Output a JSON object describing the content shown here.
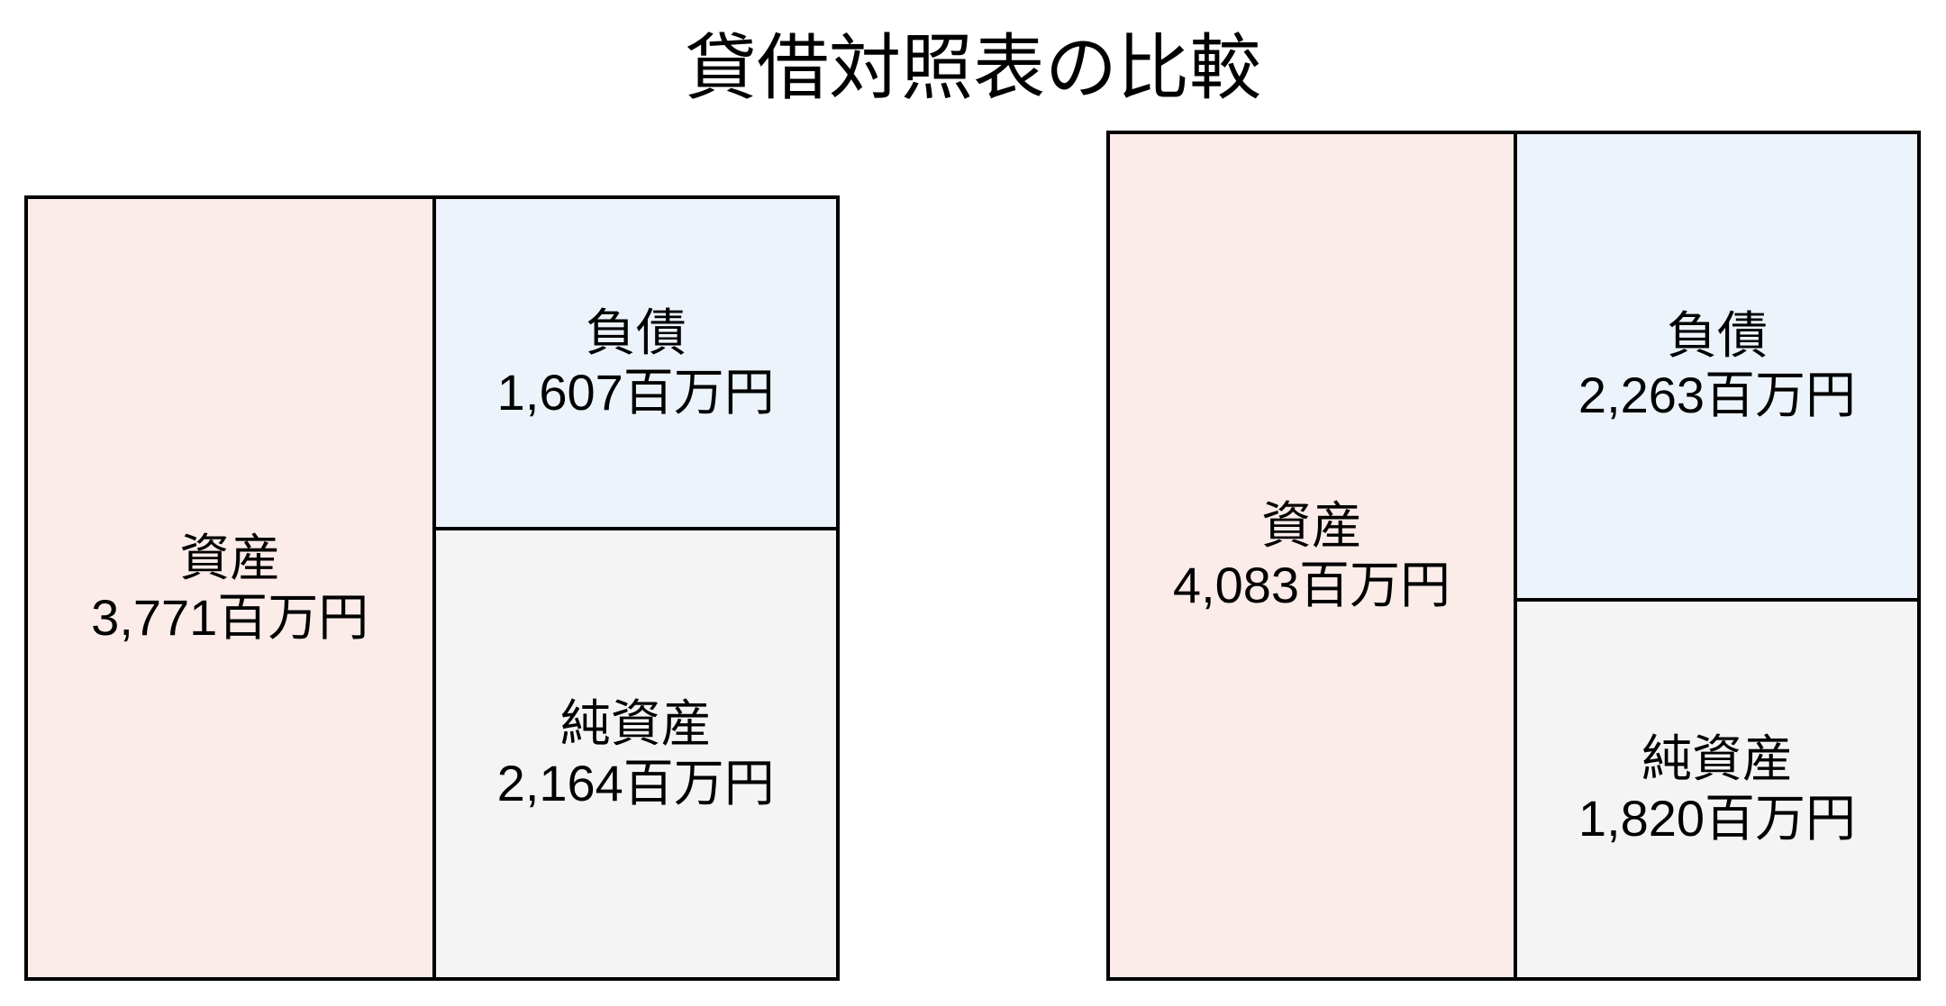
{
  "title": "貸借対照表の比較",
  "chart_data": {
    "type": "bar",
    "subtype": "balance_sheet_box_comparison",
    "title": "貸借対照表の比較",
    "unit": "百万円",
    "grid": false,
    "legend_position": "none",
    "layout_hint": "two square balance-sheet boxes, bottom-aligned, box height proportional to total assets; right column split proportional to liabilities vs net assets",
    "series": [
      {
        "name": "資産",
        "values": [
          3771,
          4083
        ]
      },
      {
        "name": "負債",
        "values": [
          1607,
          2263
        ]
      },
      {
        "name": "純資産",
        "values": [
          2164,
          1820
        ]
      }
    ],
    "sheets": [
      {
        "assets": {
          "label": "資産",
          "value": 3771,
          "display": "3,771百万円"
        },
        "liabilities": {
          "label": "負債",
          "value": 1607,
          "display": "1,607百万円"
        },
        "net_assets": {
          "label": "純資産",
          "value": 2164,
          "display": "2,164百万円"
        }
      },
      {
        "assets": {
          "label": "資産",
          "value": 4083,
          "display": "4,083百万円"
        },
        "liabilities": {
          "label": "負債",
          "value": 2263,
          "display": "2,263百万円"
        },
        "net_assets": {
          "label": "純資産",
          "value": 1820,
          "display": "1,820百万円"
        }
      }
    ],
    "colors": {
      "assets_fill": "#FBECE9",
      "liabilities_fill": "#EDF3FB",
      "net_assets_fill": "#F4F4F4",
      "border": "#000000",
      "text": "#000000",
      "background": "#FFFFFF"
    }
  }
}
